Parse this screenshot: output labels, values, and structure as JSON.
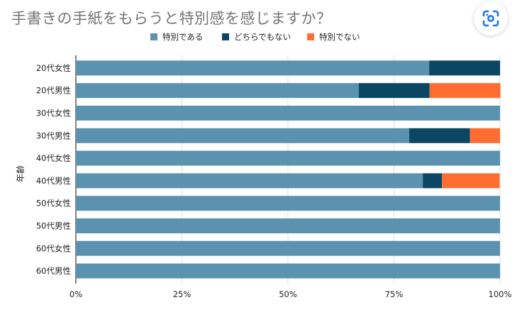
{
  "header": {
    "lens_icon": "google-lens-icon"
  },
  "chart_data": {
    "type": "bar",
    "orientation": "horizontal",
    "stacked": "percent",
    "title": "手書きの手紙をもらうと特別感を感じますか？",
    "ylabel": "年齢",
    "xlabel": "",
    "categories": [
      "20代女性",
      "20代男性",
      "30代女性",
      "30代男性",
      "40代女性",
      "40代男性",
      "50代女性",
      "50代男性",
      "60代女性",
      "60代男性"
    ],
    "series": [
      {
        "name": "特別である",
        "color": "#5b92b0",
        "values": [
          83.3,
          66.7,
          100,
          78.6,
          100,
          81.8,
          100,
          100,
          100,
          100
        ]
      },
      {
        "name": "どちらでもない",
        "color": "#0b4664",
        "values": [
          16.7,
          16.7,
          0,
          14.3,
          0,
          4.5,
          0,
          0,
          0,
          0
        ]
      },
      {
        "name": "特別でない",
        "color": "#ff6d31",
        "values": [
          0,
          16.7,
          0,
          7.1,
          0,
          13.6,
          0,
          0,
          0,
          0
        ]
      }
    ],
    "xlim": [
      0,
      100
    ],
    "xticks": [
      "0%",
      "25%",
      "50%",
      "75%",
      "100%"
    ],
    "grid": true,
    "legend": "top-center"
  }
}
